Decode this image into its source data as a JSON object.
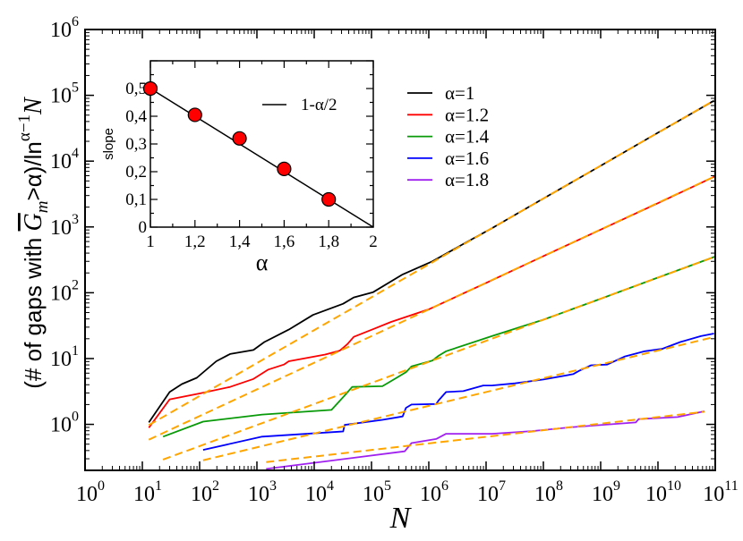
{
  "chart_data": [
    {
      "type": "line",
      "x_scale": "log",
      "y_scale": "log",
      "xlim": [
        1,
        100000000000.0
      ],
      "ylim": [
        0.2,
        1000000.0
      ],
      "xlabel": "N",
      "ylabel_parts": {
        "pre": "(# of gaps with ",
        "g": "G",
        "sub": "m",
        "mid": ">α)/ln",
        "sup": "α−1",
        "post": "N"
      },
      "tick_base": "10",
      "x_tick_exponents": [
        "0",
        "1",
        "2",
        "3",
        "4",
        "5",
        "6",
        "7",
        "8",
        "9",
        "10",
        "11"
      ],
      "y_tick_exponents": [
        "0",
        "1",
        "2",
        "3",
        "4",
        "5",
        "6"
      ],
      "grid": false,
      "legend_placement": "top-center",
      "fit_color": "#ffa500",
      "fit_style": "dashed",
      "series": [
        {
          "name": "α=1",
          "color": "#000000",
          "x": [
            13,
            30,
            49,
            89,
            195,
            340,
            870,
            1350,
            3600,
            9500,
            32000.0,
            49000.0,
            107000.0,
            350000.0,
            1150000.0,
            4000000.0,
            12600000.0,
            100000000.0,
            1000000000.0,
            10000000000.0,
            100000000000.0
          ],
          "y": [
            1.07,
            3.1,
            4.1,
            5.1,
            9.1,
            11.7,
            13.5,
            17.8,
            27.5,
            46,
            68,
            85,
            102,
            190,
            300,
            550,
            955,
            2700,
            8500,
            27000.0,
            85000.0
          ],
          "fit": {
            "slope": 0.5,
            "prefactor": 0.27,
            "x_range": [
              13,
              100000000000.0
            ]
          }
        },
        {
          "name": "α=1.2",
          "color": "#ff0000",
          "x": [
            13,
            30,
            100,
            340,
            870,
            1580,
            2950,
            3600,
            15500.0,
            28000.0,
            38000.0,
            49000.0,
            107000.0,
            220000.0,
            1000000.0,
            10000000.0,
            100000000.0,
            1000000000.0,
            10000000000.0,
            100000000000.0
          ],
          "y": [
            0.89,
            2.4,
            2.95,
            3.7,
            4.9,
            6.8,
            8.1,
            9.1,
            11.5,
            13.2,
            16.6,
            21.4,
            28,
            36,
            56,
            141,
            360,
            910,
            2300,
            5900
          ],
          "fit": {
            "slope": 0.405,
            "prefactor": 0.207,
            "x_range": [
              13,
              100000000000.0
            ]
          }
        },
        {
          "name": "α=1.4",
          "color": "#089a08",
          "x": [
            23,
            115,
            1230,
            20000.0,
            36000.0,
            46000.0,
            155000.0,
            245000.0,
            400000.0,
            500000.0,
            1150000.0,
            1480000.0,
            2000000.0,
            12600000.0,
            100000000.0,
            1000000000.0,
            10000000000.0,
            100000000000.0
          ],
          "y": [
            0.65,
            1.1,
            1.41,
            1.66,
            2.9,
            3.7,
            3.8,
            4.8,
            6.2,
            7.6,
            9.3,
            11,
            12.9,
            21.9,
            39,
            81,
            170,
            355
          ],
          "fit": {
            "slope": 0.32,
            "prefactor": 0.107,
            "x_range": [
              23,
              100000000000.0
            ]
          }
        },
        {
          "name": "α=1.6",
          "color": "#0000ff",
          "x": [
            115,
            1230,
            32000.0,
            34000.0,
            155000.0,
            350000.0,
            400000.0,
            500000.0,
            1350000.0,
            1480000.0,
            2000000.0,
            4000000.0,
            8900000.0,
            12600000.0,
            32000000.0,
            100000000.0,
            330000000.0,
            420000000.0,
            680000000.0,
            1300000000.0,
            2600000000.0,
            5900000000.0,
            12000000000.0,
            24500000000.0,
            56000000000.0,
            95000000000.0
          ],
          "y": [
            0.41,
            0.65,
            0.78,
            0.98,
            1.17,
            1.32,
            1.78,
            2.0,
            2.04,
            2.3,
            3.1,
            3.2,
            3.9,
            3.9,
            4.2,
            4.8,
            5.8,
            6.5,
            7.9,
            8.1,
            10.7,
            12.9,
            14.1,
            17.8,
            21.9,
            24
          ],
          "fit": {
            "slope": 0.21,
            "prefactor": 0.105,
            "x_range": [
              115,
              100000000000.0
            ]
          }
        },
        {
          "name": "α=1.8",
          "color": "#a020f0",
          "x": [
            1450,
            380000.0,
            500000.0,
            1350000.0,
            2000000.0,
            12600000.0,
            63000000.0,
            330000000.0,
            4100000000.0,
            4600000000.0,
            22000000000.0,
            65000000000.0
          ],
          "y": [
            0.21,
            0.39,
            0.52,
            0.6,
            0.72,
            0.72,
            0.79,
            0.91,
            1.07,
            1.2,
            1.29,
            1.58
          ],
          "fit": {
            "slope": 0.1,
            "prefactor": 0.129,
            "x_range": [
              1450,
              65000000000.0
            ]
          }
        }
      ]
    },
    {
      "type": "scatter",
      "role": "inset",
      "xlabel": "α",
      "ylabel": "slope",
      "xlim": [
        1,
        2
      ],
      "ylim": [
        0,
        0.6
      ],
      "x_tick_labels": [
        "1",
        "1,2",
        "1,4",
        "1,6",
        "1,8",
        "2"
      ],
      "x_tick_values": [
        1,
        1.2,
        1.4,
        1.6,
        1.8,
        2
      ],
      "y_tick_labels": [
        "0",
        "0,1",
        "0,2",
        "0,3",
        "0,4",
        "0,5"
      ],
      "y_tick_values": [
        0,
        0.1,
        0.2,
        0.3,
        0.4,
        0.5
      ],
      "points": {
        "x": [
          1,
          1.2,
          1.4,
          1.6,
          1.8
        ],
        "y": [
          0.5,
          0.405,
          0.32,
          0.21,
          0.1
        ],
        "color": "#ff0000"
      },
      "line": {
        "name": "1-α/2",
        "color": "#000000",
        "x": [
          1,
          2
        ],
        "y": [
          0.5,
          0
        ]
      },
      "legend_placement": "top-right"
    }
  ]
}
